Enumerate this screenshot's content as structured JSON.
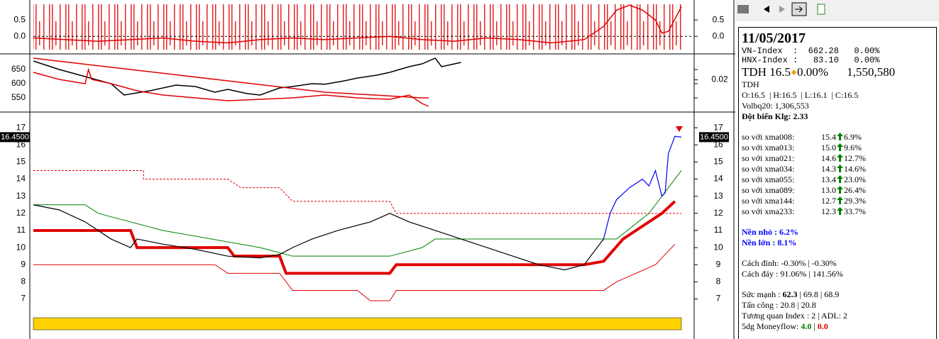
{
  "panels": {
    "oscillator": {
      "xlim": [
        0,
        100
      ],
      "ylim": [
        -0.45,
        1.0
      ],
      "yticks": [
        0.5,
        {
          "value": 0,
          "label": "0.0"
        }
      ],
      "series": [
        {
          "color": "#e00000",
          "x": [
            0,
            5,
            10,
            15,
            20,
            25,
            30,
            35,
            40,
            45,
            50,
            55,
            60,
            65,
            70,
            75,
            80,
            85,
            88,
            90,
            92,
            94,
            96,
            97,
            98,
            100
          ],
          "values": [
            -0.05,
            -0.1,
            -0.15,
            -0.1,
            -0.05,
            -0.15,
            -0.2,
            -0.1,
            -0.05,
            -0.1,
            -0.05,
            0.0,
            -0.1,
            -0.15,
            -0.05,
            -0.1,
            -0.2,
            -0.1,
            0.3,
            0.8,
            0.95,
            0.8,
            0.5,
            0.1,
            0.15,
            0.9
          ]
        }
      ]
    },
    "index": {
      "xlim": [
        0,
        100
      ],
      "ylim": [
        505,
        695
      ],
      "yticks": [
        650,
        600,
        550
      ],
      "y2lim": [
        0,
        0.035
      ],
      "y2ticks": [
        0.02
      ],
      "series": [
        {
          "color": "#000000",
          "x": [
            0,
            4,
            8,
            12,
            14,
            18,
            22,
            25,
            28,
            30,
            33,
            35,
            38,
            40,
            43,
            45,
            48,
            50,
            53,
            55,
            58,
            60,
            62,
            63,
            66
          ],
          "values": [
            680,
            650,
            625,
            600,
            560,
            575,
            595,
            590,
            570,
            580,
            565,
            560,
            585,
            590,
            600,
            598,
            610,
            620,
            630,
            640,
            660,
            670,
            690,
            660,
            675
          ]
        },
        {
          "color": "#e00000",
          "x": [
            0,
            4,
            8,
            8.5,
            9,
            12,
            16,
            20,
            25,
            30,
            35,
            40,
            45,
            50,
            55,
            58,
            60,
            61
          ],
          "values": [
            640,
            615,
            600,
            650,
            615,
            600,
            575,
            560,
            550,
            540,
            545,
            550,
            560,
            550,
            545,
            560,
            530,
            520
          ]
        },
        {
          "color": "#e00000",
          "x": [
            0,
            15,
            30,
            45,
            60,
            61
          ],
          "values": [
            690,
            650,
            610,
            570,
            550,
            550
          ]
        }
      ]
    },
    "main": {
      "xlim": [
        0,
        100
      ],
      "ylim": [
        5.2,
        17.75
      ],
      "yticks": [
        17,
        16,
        15,
        14,
        13,
        12,
        11,
        10,
        9,
        8,
        7
      ],
      "last_price": {
        "value": 16.45,
        "label": "16.4500"
      },
      "series": [
        {
          "color": "#e00000",
          "width": 1,
          "dash": "3,2",
          "x": [
            0,
            17,
            17,
            30,
            32,
            38,
            40,
            55,
            56,
            100
          ],
          "values": [
            14.5,
            14.5,
            14,
            14,
            13.5,
            13.5,
            12.7,
            12.7,
            12,
            12
          ]
        },
        {
          "color": "#008000",
          "width": 1,
          "dash": "",
          "x": [
            0,
            8,
            10,
            20,
            35,
            40,
            55,
            60,
            62,
            90,
            95,
            100
          ],
          "values": [
            12.5,
            12.5,
            12,
            11,
            10,
            9.5,
            9.5,
            10,
            10.5,
            10.5,
            12,
            14.5
          ]
        },
        {
          "color": "#e00000",
          "width": 1,
          "dash": "",
          "x": [
            0,
            28,
            30,
            38,
            40,
            50,
            52,
            55,
            56,
            88,
            90,
            96,
            99
          ],
          "values": [
            9,
            9,
            8.5,
            8.5,
            7.5,
            7.5,
            6.9,
            6.9,
            7.5,
            7.5,
            8,
            9,
            10.2
          ]
        },
        {
          "color": "#e00000",
          "width": 4,
          "dash": "",
          "x": [
            0,
            15,
            16,
            30,
            31,
            38,
            39,
            55,
            56,
            85,
            88,
            91,
            97,
            99
          ],
          "values": [
            11,
            11,
            10,
            10,
            9.5,
            9.5,
            8.5,
            8.5,
            9,
            9,
            9.2,
            10.5,
            12,
            12.7
          ]
        },
        {
          "color": "#000000",
          "width": 1.2,
          "dash": "",
          "x": [
            0,
            4,
            8,
            12,
            15,
            16,
            20,
            25,
            30,
            35,
            38,
            40,
            43,
            47,
            52,
            55,
            58,
            62,
            66,
            70,
            74,
            78,
            82,
            85,
            88
          ],
          "values": [
            12.5,
            12.2,
            11.5,
            10.5,
            10,
            10.5,
            10.2,
            9.9,
            9.5,
            9.4,
            9.6,
            10,
            10.5,
            11,
            11.5,
            12,
            11.5,
            11,
            10.5,
            10,
            9.5,
            9,
            8.7,
            9,
            10.5
          ]
        },
        {
          "color": "#0000ff",
          "width": 1.2,
          "dash": "",
          "x": [
            88,
            89,
            90,
            92,
            94,
            95,
            96,
            97,
            97.5,
            98,
            99,
            100
          ],
          "values": [
            10.5,
            12,
            12.8,
            13.5,
            14,
            13.6,
            14.5,
            13,
            13.2,
            15.5,
            16.5,
            16.45
          ]
        }
      ]
    }
  },
  "info": {
    "date": "11/05/2017",
    "vn_index": "VN-Index  :  662.28   0.00%",
    "hnx_index": "HNX-Index :   83.10   0.00%",
    "ticker": "TDH",
    "price": "16.5",
    "change": "0.00%",
    "volume": "1,550,580",
    "name": "TDH",
    "ohlc": "O:16.5  | H:16.5  | L:16.1  | C:16.5",
    "volbq": "Volbq20: 1,306,553",
    "spike": "Đột biến Klg: 2.33",
    "ma_rows": [
      {
        "label": "so với xma008:",
        "value": "15.4",
        "pct": "6.9%"
      },
      {
        "label": "so với xma013:",
        "value": "15.0",
        "pct": "9.6%"
      },
      {
        "label": "so với xma021:",
        "value": "14.6",
        "pct": "12.7%"
      },
      {
        "label": "so với xma034:",
        "value": "14.3",
        "pct": "14.6%"
      },
      {
        "label": "so với xma055:",
        "value": "13.4",
        "pct": "23.0%"
      },
      {
        "label": "so với xma089:",
        "value": "13.0",
        "pct": "26.4%"
      },
      {
        "label": "so với xma144:",
        "value": "12.7",
        "pct": "29.3%"
      },
      {
        "label": "so với xma233:",
        "value": "12.3",
        "pct": "33.7%"
      }
    ],
    "base_small": "Nền nhỏ : 6.2%",
    "base_large": "Nền lớn : 8.1%",
    "from_peak": "Cách đỉnh: -0.30% | -0.30%",
    "from_bottom": "Cách đáy : 91.06% | 141.56%",
    "strength_label": "Sức mạnh : ",
    "strength_main": "62.3",
    "strength_rest": " | 69.8 | 68.9",
    "attack": "Tấn công : 20.8 | 20.8",
    "correlation": "Tương quan Index : 2 | ADL: 2",
    "moneyflow_label": "5dg Moneyflow: ",
    "moneyflow_in": "4.0",
    "moneyflow_sep": " | ",
    "moneyflow_out": "0.0"
  }
}
